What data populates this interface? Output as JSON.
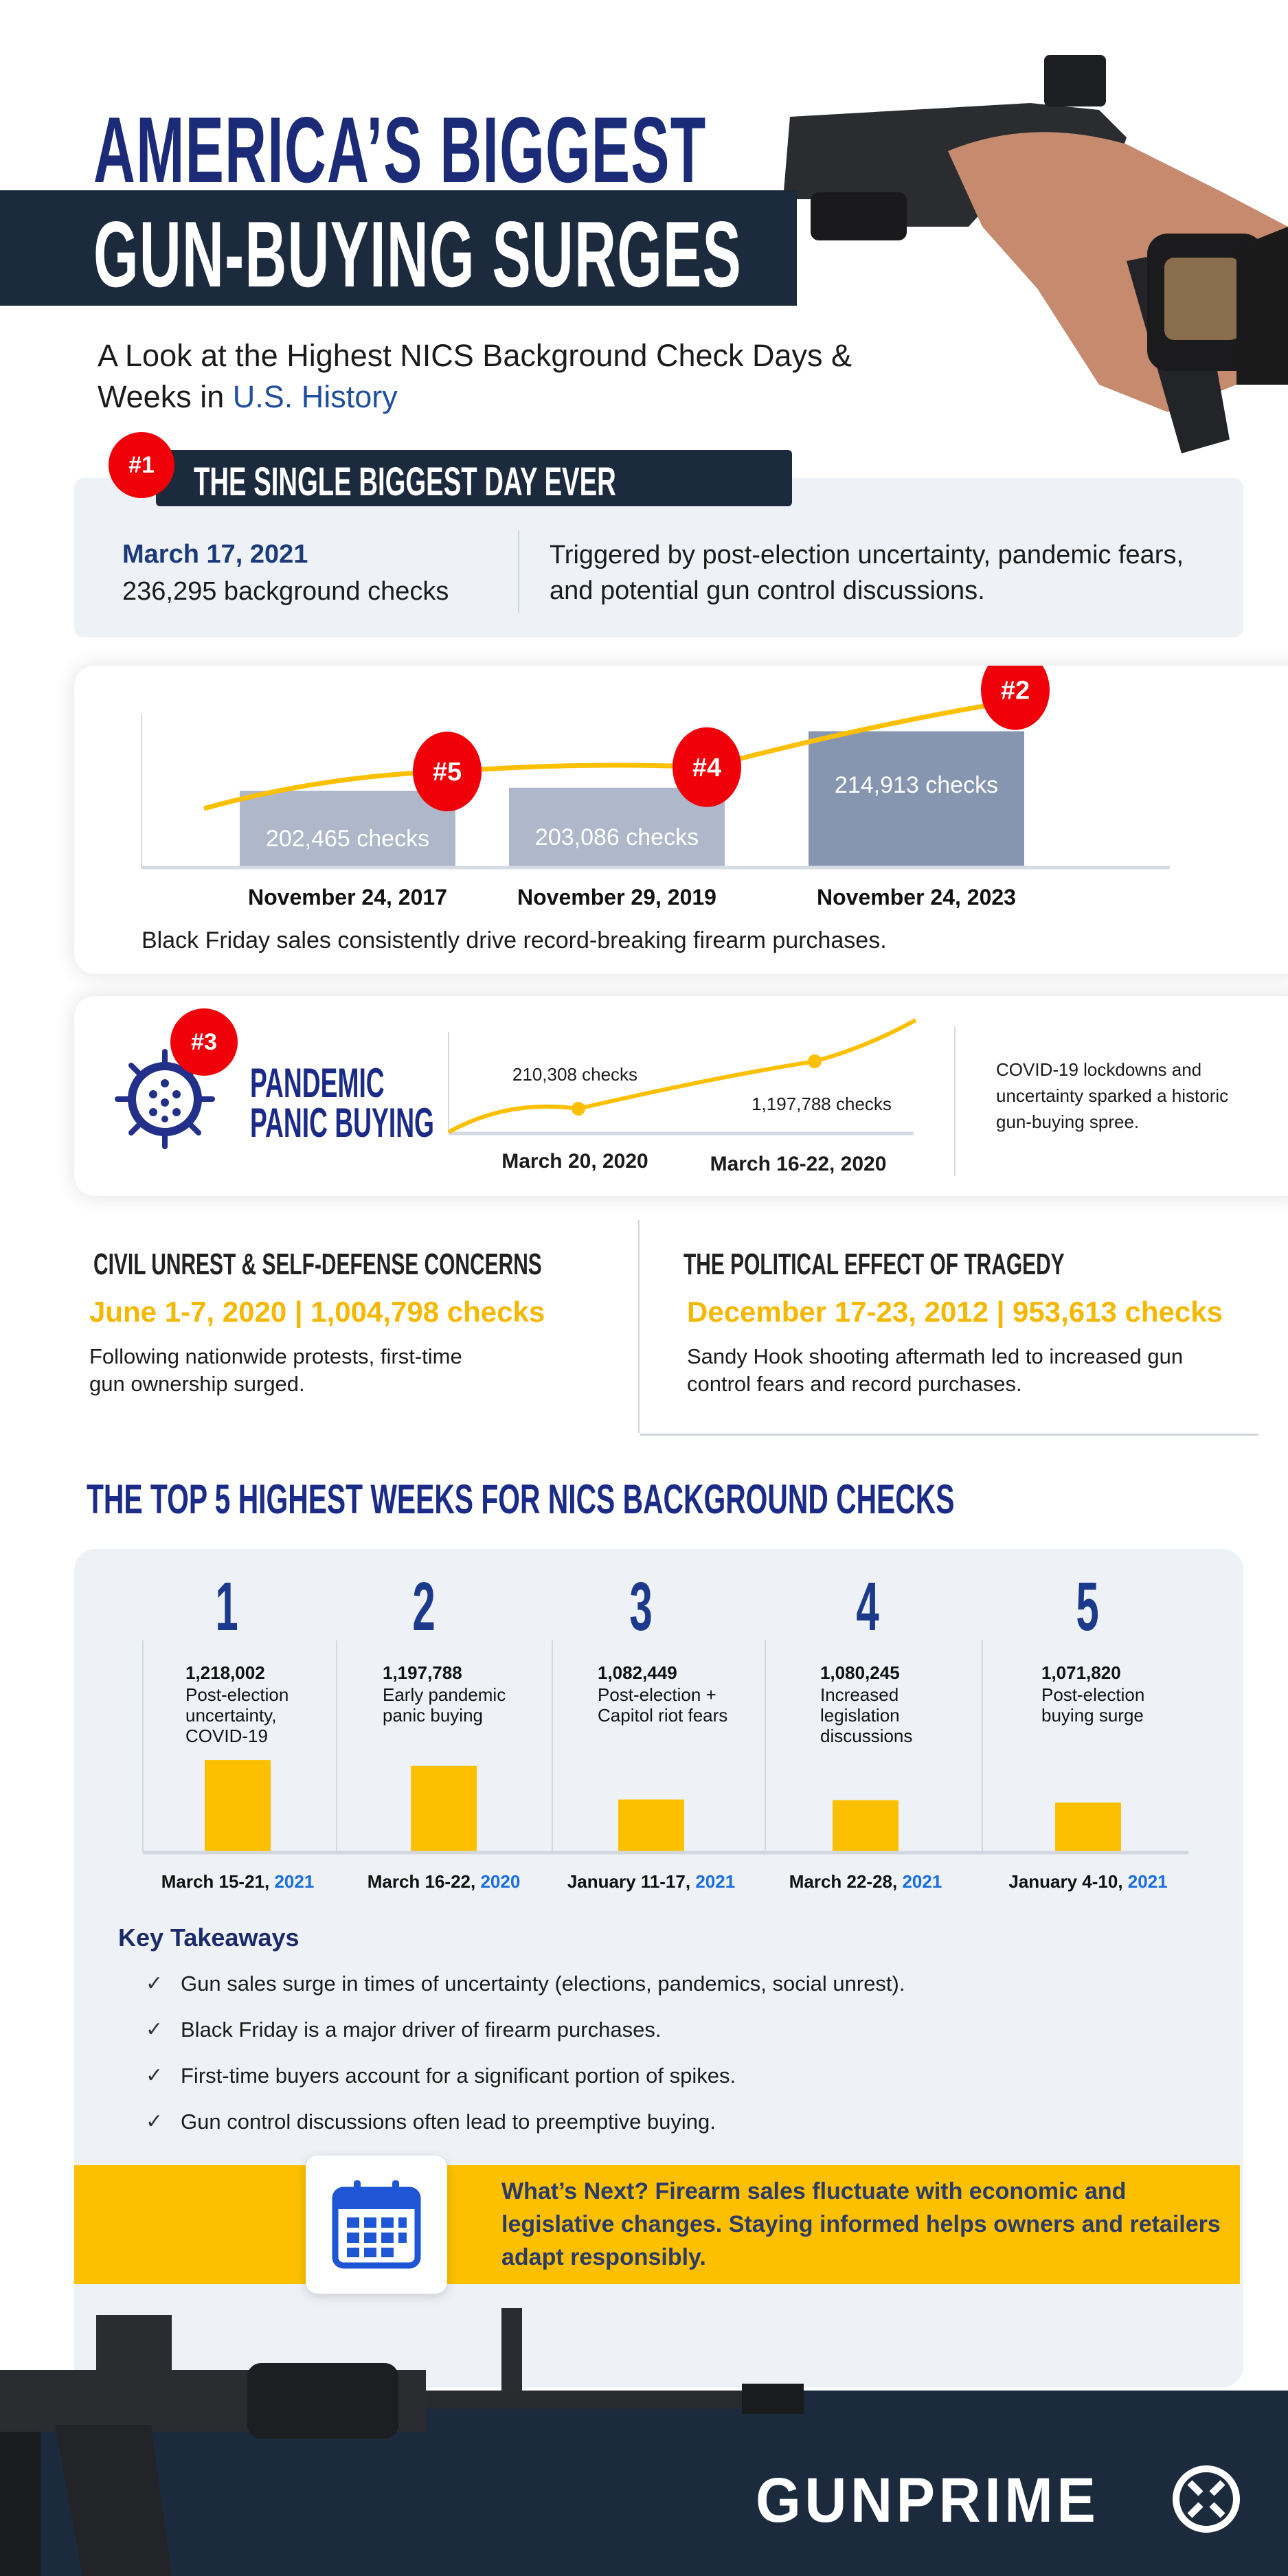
{
  "header": {
    "title_line1": "AMERICA’S BIGGEST",
    "title_line2": "GUN-BUYING SURGES",
    "subtitle_part1": "A Look at the Highest NICS Background Check Days & Weeks in ",
    "subtitle_highlight": "U.S. History"
  },
  "biggest_day": {
    "rank": "#1",
    "heading": "THE SINGLE BIGGEST DAY EVER",
    "date": "March 17, 2021",
    "checks": "236,295 background checks",
    "description": "Triggered by post-election uncertainty, pandemic fears, and potential gun control discussions."
  },
  "chart_data": [
    {
      "type": "bar",
      "categories": [
        "November 24, 2017",
        "November 29, 2019",
        "November 24, 2023"
      ],
      "values": [
        202465,
        203086,
        214913
      ],
      "data_labels": [
        "202,465  checks",
        "203,086 checks",
        "214,913 checks"
      ],
      "ranks": [
        "#5",
        "#4",
        "#2"
      ],
      "caption": "Black Friday sales consistently drive record-breaking firearm purchases.",
      "colors": [
        "#aeb8ca",
        "#aeb8ca",
        "#8796b0"
      ],
      "trend_color": "#fcc000"
    },
    {
      "type": "line",
      "categories": [
        "March 20, 2020",
        "March 16-22, 2020"
      ],
      "data_labels": [
        "210,308 checks",
        "1,197,788 checks"
      ],
      "line_color": "#fcc000"
    },
    {
      "type": "bar",
      "categories": [
        "March 15-21, 2021",
        "March 16-22, 2020",
        "January 11-17, 2021",
        "March 22-28, 2021",
        "January 4-10, 2021"
      ],
      "values": [
        1218002,
        1197788,
        1082449,
        1080245,
        1071820
      ],
      "color": "#fcc000"
    }
  ],
  "pandemic": {
    "rank": "#3",
    "title_line1": "PANDEMIC",
    "title_line2": "PANIC BUYING",
    "description": "COVID-19 lockdowns and uncertainty sparked a historic gun-buying spree."
  },
  "civil": {
    "heading": "CIVIL UNREST & SELF-DEFENSE CONCERNS",
    "stat": "June 1-7, 2020 | 1,004,798 checks",
    "description": "Following nationwide protests, first-time gun ownership surged."
  },
  "tragedy": {
    "heading": "THE POLITICAL EFFECT OF TRAGEDY",
    "stat": "December 17-23, 2012 | 953,613 checks",
    "description": "Sandy Hook shooting aftermath led to increased gun control fears and record purchases."
  },
  "top5": {
    "heading": "THE TOP 5 HIGHEST WEEKS FOR NICS BACKGROUND CHECKS",
    "items": [
      {
        "rank": "1",
        "value": "1,218,002",
        "desc": "Post-election uncertainty, COVID-19",
        "date": "March 15-21, ",
        "year": "2021"
      },
      {
        "rank": "2",
        "value": "1,197,788",
        "desc": "Early pandemic panic buying",
        "date": "March 16-22, ",
        "year": "2020"
      },
      {
        "rank": "3",
        "value": "1,082,449",
        "desc": "Post-election + Capitol riot fears",
        "date": "January 11-17, ",
        "year": "2021"
      },
      {
        "rank": "4",
        "value": "1,080,245",
        "desc": "Increased legislation discussions",
        "date": "March 22-28, ",
        "year": "2021"
      },
      {
        "rank": "5",
        "value": "1,071,820",
        "desc": "Post-election buying surge",
        "date": "January 4-10, ",
        "year": "2021"
      }
    ]
  },
  "takeaways": {
    "heading": "Key Takeaways",
    "items": [
      "Gun sales surge in times of uncertainty (elections, pandemics, social unrest).",
      "Black Friday is a major driver of firearm purchases.",
      "First-time buyers account for a significant portion of spikes.",
      "Gun control discussions often lead to preemptive buying."
    ]
  },
  "banner": {
    "text": "What’s Next? Firearm sales fluctuate with economic and legislative changes. Staying informed helps owners and retailers adapt responsibly.",
    "icon": "calendar-icon",
    "color": "#fcc000"
  },
  "footer": {
    "logo": "GUNPRIME"
  }
}
